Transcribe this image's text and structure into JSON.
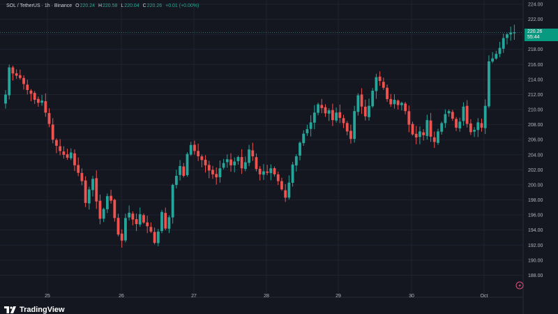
{
  "legend": {
    "symbol": "SOL / TetherUS · 1h · Binance",
    "o_label": "O",
    "o_value": "220.24",
    "h_label": "H",
    "h_value": "220.58",
    "l_label": "L",
    "l_value": "220.04",
    "c_label": "C",
    "c_value": "220.26",
    "change": "+0.01 (+0.00%)"
  },
  "price_tag": {
    "price": "220.26",
    "countdown": "55:44"
  },
  "brand": {
    "name": "TradingView"
  },
  "colors": {
    "up": "#26a69a",
    "down": "#ef5350",
    "background": "#141720",
    "grid": "#1f2330",
    "axis_text": "#b2b5be",
    "tag": "#089981"
  },
  "chart_data": {
    "type": "candlestick",
    "interval": "1h",
    "ylim": [
      186,
      224
    ],
    "y_ticks": [
      "224.00",
      "222.00",
      "220.00",
      "218.00",
      "216.00",
      "214.00",
      "212.00",
      "210.00",
      "208.00",
      "206.00",
      "204.00",
      "202.00",
      "200.00",
      "198.00",
      "196.00",
      "194.00",
      "192.00",
      "190.00",
      "188.00"
    ],
    "x_ticks": [
      "25",
      "26",
      "27",
      "28",
      "29",
      "30",
      "Oct"
    ],
    "last_price": 220.26,
    "close_anchors": [
      [
        0,
        212
      ],
      [
        1,
        215.6
      ],
      [
        2,
        214.8
      ],
      [
        3,
        214.5
      ],
      [
        4,
        214.2
      ],
      [
        5,
        213.4
      ],
      [
        6,
        212.6
      ],
      [
        7,
        212.1
      ],
      [
        8,
        211.3
      ],
      [
        9,
        210.9
      ],
      [
        10,
        211.2
      ],
      [
        11,
        209.6
      ],
      [
        12,
        208.1
      ],
      [
        13,
        206.0
      ],
      [
        14,
        205.2
      ],
      [
        15,
        204.5
      ],
      [
        16,
        204.0
      ],
      [
        17,
        203.6
      ],
      [
        18,
        204.3
      ],
      [
        19,
        202.6
      ],
      [
        20,
        201.6
      ],
      [
        21,
        200.5
      ],
      [
        22,
        197.6
      ],
      [
        23,
        199.4
      ],
      [
        24,
        200.8
      ],
      [
        25,
        197.8
      ],
      [
        26,
        195.5
      ],
      [
        27,
        196.8
      ],
      [
        28,
        198.5
      ],
      [
        29,
        197.9
      ],
      [
        30,
        195.6
      ],
      [
        31,
        193.4
      ],
      [
        32,
        192.6
      ],
      [
        33,
        195.6
      ],
      [
        34,
        196.3
      ],
      [
        35,
        195.4
      ],
      [
        36,
        194.8
      ],
      [
        37,
        196.1
      ],
      [
        38,
        195.0
      ],
      [
        39,
        194.5
      ],
      [
        40,
        193.8
      ],
      [
        41,
        192.3
      ],
      [
        42,
        193.8
      ],
      [
        43,
        196.4
      ],
      [
        44,
        194.2
      ],
      [
        45,
        195.7
      ],
      [
        46,
        200.0
      ],
      [
        47,
        201.2
      ],
      [
        48,
        202.5
      ],
      [
        49,
        201.2
      ],
      [
        50,
        204.1
      ],
      [
        51,
        205.3
      ],
      [
        52,
        204.5
      ],
      [
        53,
        203.8
      ],
      [
        54,
        203.3
      ],
      [
        55,
        202.6
      ],
      [
        56,
        201.9
      ],
      [
        57,
        201.4
      ],
      [
        58,
        201.0
      ],
      [
        59,
        202.2
      ],
      [
        60,
        202.9
      ],
      [
        61,
        203.4
      ],
      [
        62,
        202.6
      ],
      [
        63,
        203.1
      ],
      [
        64,
        203.7
      ],
      [
        65,
        202.2
      ],
      [
        66,
        203.0
      ],
      [
        67,
        204.7
      ],
      [
        68,
        203.8
      ],
      [
        69,
        202.1
      ],
      [
        70,
        201.4
      ],
      [
        71,
        201.8
      ],
      [
        72,
        201.6
      ],
      [
        73,
        202.2
      ],
      [
        74,
        201.4
      ],
      [
        75,
        200.5
      ],
      [
        76,
        199.4
      ],
      [
        77,
        198.3
      ],
      [
        78,
        200.3
      ],
      [
        79,
        202.7
      ],
      [
        80,
        203.8
      ],
      [
        81,
        205.6
      ],
      [
        82,
        206.8
      ],
      [
        83,
        207.4
      ],
      [
        84,
        208.3
      ],
      [
        85,
        209.6
      ],
      [
        86,
        210.7
      ],
      [
        87,
        210.2
      ],
      [
        88,
        209.5
      ],
      [
        89,
        209.9
      ],
      [
        90,
        208.6
      ],
      [
        91,
        209.6
      ],
      [
        92,
        208.9
      ],
      [
        93,
        208.2
      ],
      [
        94,
        207.1
      ],
      [
        95,
        206.1
      ],
      [
        96,
        209.8
      ],
      [
        97,
        211.9
      ],
      [
        98,
        210.4
      ],
      [
        99,
        209.1
      ],
      [
        100,
        210.5
      ],
      [
        101,
        212.5
      ],
      [
        102,
        214.3
      ],
      [
        103,
        213.8
      ],
      [
        104,
        212.9
      ],
      [
        105,
        211.4
      ],
      [
        106,
        210.7
      ],
      [
        107,
        211.3
      ],
      [
        108,
        210.6
      ],
      [
        109,
        210.9
      ],
      [
        110,
        209.8
      ],
      [
        111,
        208.0
      ],
      [
        112,
        206.7
      ],
      [
        113,
        206.3
      ],
      [
        114,
        207.1
      ],
      [
        115,
        206.6
      ],
      [
        116,
        208.6
      ],
      [
        117,
        206.4
      ],
      [
        118,
        205.7
      ],
      [
        119,
        207.1
      ],
      [
        120,
        208.2
      ],
      [
        121,
        209.4
      ],
      [
        122,
        209.8
      ],
      [
        123,
        208.8
      ],
      [
        124,
        207.6
      ],
      [
        125,
        208.4
      ],
      [
        126,
        210.4
      ],
      [
        127,
        208.1
      ],
      [
        128,
        207.0
      ],
      [
        129,
        207.3
      ],
      [
        130,
        208.3
      ],
      [
        131,
        207.6
      ],
      [
        132,
        210.5
      ],
      [
        133,
        216.4
      ],
      [
        134,
        216.8
      ],
      [
        135,
        217.4
      ],
      [
        136,
        218.2
      ],
      [
        137,
        219.5
      ],
      [
        138,
        220.0
      ],
      [
        139,
        220.24
      ],
      [
        140,
        220.26
      ]
    ]
  }
}
